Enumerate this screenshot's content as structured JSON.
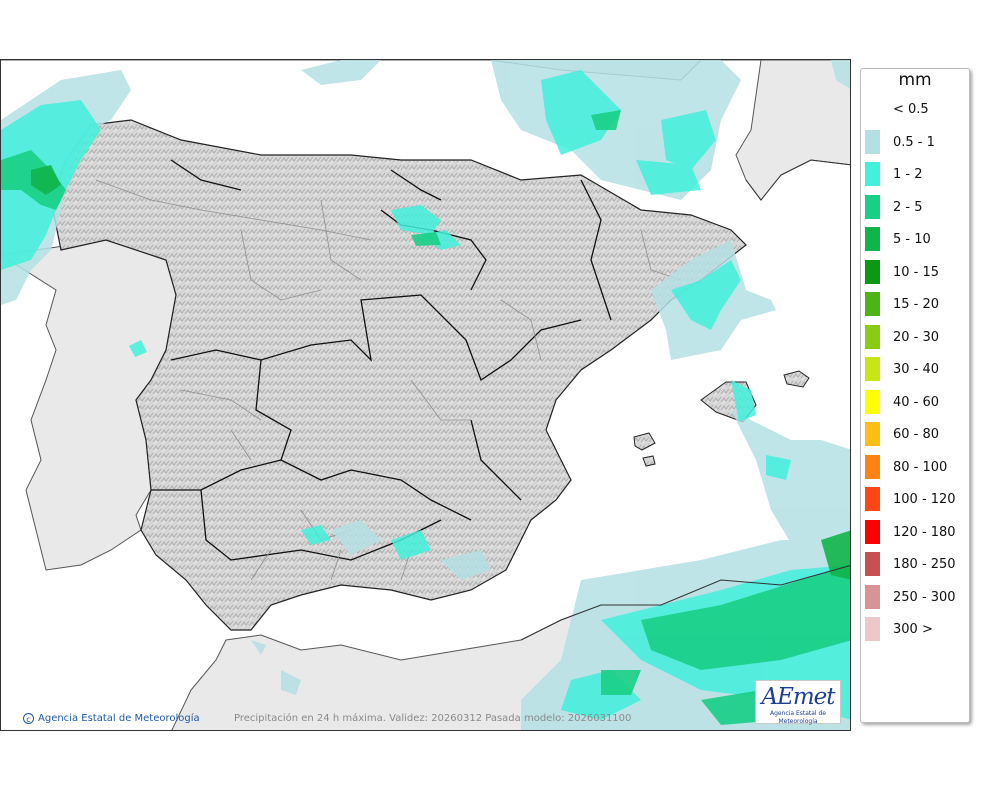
{
  "map": {
    "footer_credit": "Agencia Estatal de Meteorología",
    "footer_note": "Precipitación en 24 h máxima. Validez: 20260312 Pasada modelo: 2026031100",
    "logo_text": "AEmet",
    "logo_subtitle": "Agencia Estatal de Meteorología"
  },
  "legend": {
    "unit": "mm",
    "items": [
      {
        "label": "< 0.5",
        "color": "#ffffff"
      },
      {
        "label": "0.5 - 1",
        "color": "#b4e0e4"
      },
      {
        "label": "1 - 2",
        "color": "#42f0dc"
      },
      {
        "label": "2 - 5",
        "color": "#19cf86"
      },
      {
        "label": "5 - 10",
        "color": "#0fb44a"
      },
      {
        "label": "10 - 15",
        "color": "#0b9812"
      },
      {
        "label": "15 - 20",
        "color": "#4cb414"
      },
      {
        "label": "20 - 30",
        "color": "#88cc14"
      },
      {
        "label": "30 - 40",
        "color": "#c8e614"
      },
      {
        "label": "40 - 60",
        "color": "#ffff00"
      },
      {
        "label": "60 - 80",
        "color": "#ffbe14"
      },
      {
        "label": "80 - 100",
        "color": "#ff8214"
      },
      {
        "label": "100 - 120",
        "color": "#ff4614"
      },
      {
        "label": "120 - 180",
        "color": "#ff0000"
      },
      {
        "label": "180 - 250",
        "color": "#c85050"
      },
      {
        "label": "250 - 300",
        "color": "#d89494"
      },
      {
        "label": "300 >",
        "color": "#ecc8c8"
      }
    ]
  }
}
